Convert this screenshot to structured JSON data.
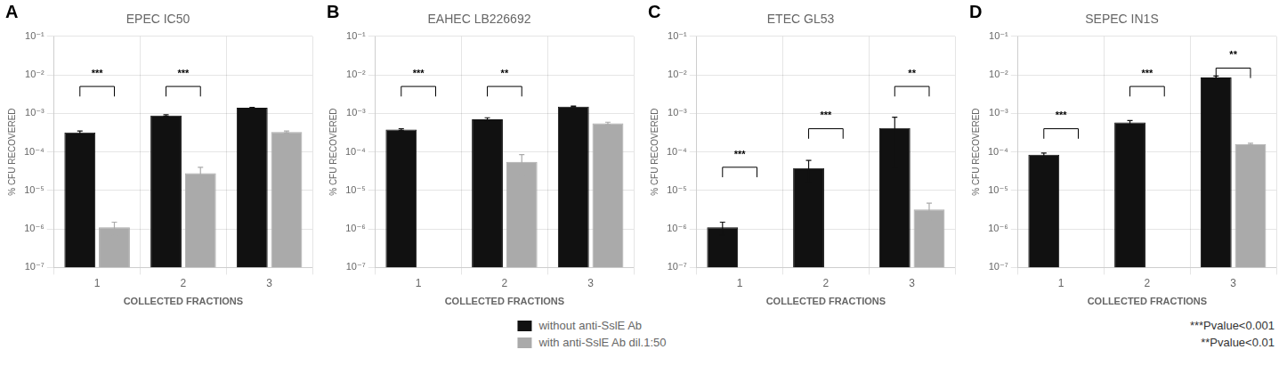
{
  "chart_data": [
    {
      "type": "bar",
      "label": "A",
      "title": "EPEC IC50",
      "categories": [
        "1",
        "2",
        "3"
      ],
      "series": [
        {
          "name": "without anti-SslE Ab",
          "color": "#111111",
          "values": [
            0.00032,
            0.00088,
            0.0014
          ],
          "errors": [
            3e-05,
            4e-05,
            3e-05
          ]
        },
        {
          "name": "with anti-SslE Ab dil.1:50",
          "color": "#aaaaaa",
          "values": [
            1.1e-06,
            2.8e-05,
            0.00033
          ],
          "errors": [
            4e-07,
            1.2e-05,
            2e-05
          ]
        }
      ],
      "brackets": [
        {
          "category": "1",
          "y": 0.005,
          "label": "***"
        },
        {
          "category": "2",
          "y": 0.005,
          "label": "***"
        }
      ],
      "xlabel": "COLLECTED FRACTIONS",
      "ylabel": "% CFU RECOVERED",
      "log": "y",
      "ylim": [
        1e-07,
        0.1
      ],
      "yticks": [
        {
          "value": 1e-07,
          "label": "10⁻⁷"
        },
        {
          "value": 1e-06,
          "label": "10⁻⁶"
        },
        {
          "value": 1e-05,
          "label": "10⁻⁵"
        },
        {
          "value": 0.0001,
          "label": "10⁻⁴"
        },
        {
          "value": 0.001,
          "label": "10⁻³"
        },
        {
          "value": 0.01,
          "label": "10⁻²"
        },
        {
          "value": 0.1,
          "label": "10⁻¹"
        }
      ],
      "grid": true
    },
    {
      "type": "bar",
      "label": "B",
      "title": "EAHEC LB226692",
      "categories": [
        "1",
        "2",
        "3"
      ],
      "series": [
        {
          "name": "without anti-SslE Ab",
          "color": "#111111",
          "values": [
            0.00038,
            0.0007,
            0.0015
          ],
          "errors": [
            2e-05,
            7e-05,
            4e-05
          ]
        },
        {
          "name": "with anti-SslE Ab dil.1:50",
          "color": "#aaaaaa",
          "values": [
            null,
            5.5e-05,
            0.00055
          ],
          "errors": [
            null,
            3e-05,
            4e-05
          ]
        }
      ],
      "brackets": [
        {
          "category": "1",
          "y": 0.005,
          "label": "***"
        },
        {
          "category": "2",
          "y": 0.005,
          "label": "**"
        }
      ],
      "xlabel": "COLLECTED FRACTIONS",
      "ylabel": "% CFU RECOVERED",
      "log": "y",
      "ylim": [
        1e-07,
        0.1
      ],
      "yticks": [
        {
          "value": 1e-07,
          "label": "10⁻⁷"
        },
        {
          "value": 1e-06,
          "label": "10⁻⁶"
        },
        {
          "value": 1e-05,
          "label": "10⁻⁵"
        },
        {
          "value": 0.0001,
          "label": "10⁻⁴"
        },
        {
          "value": 0.001,
          "label": "10⁻³"
        },
        {
          "value": 0.01,
          "label": "10⁻²"
        },
        {
          "value": 0.1,
          "label": "10⁻¹"
        }
      ],
      "grid": true,
      "legend": "bottom"
    },
    {
      "type": "bar",
      "label": "C",
      "title": "ETEC GL53",
      "categories": [
        "1",
        "2",
        "3"
      ],
      "series": [
        {
          "name": "without anti-SslE Ab",
          "color": "#111111",
          "values": [
            1.1e-06,
            3.8e-05,
            0.00042
          ],
          "errors": [
            4e-07,
            2.2e-05,
            0.00038
          ]
        },
        {
          "name": "with anti-SslE Ab dil.1:50",
          "color": "#aaaaaa",
          "values": [
            null,
            null,
            3.2e-06
          ],
          "errors": [
            null,
            null,
            1.5e-06
          ]
        }
      ],
      "brackets": [
        {
          "category": "1",
          "y": 4e-05,
          "label": "***"
        },
        {
          "category": "2",
          "y": 0.0004,
          "label": "***"
        },
        {
          "category": "3",
          "y": 0.005,
          "label": "**"
        }
      ],
      "xlabel": "COLLECTED FRACTIONS",
      "ylabel": "% CFU RECOVERED",
      "log": "y",
      "ylim": [
        1e-07,
        0.1
      ],
      "yticks": [
        {
          "value": 1e-07,
          "label": "10⁻⁷"
        },
        {
          "value": 1e-06,
          "label": "10⁻⁶"
        },
        {
          "value": 1e-05,
          "label": "10⁻⁵"
        },
        {
          "value": 0.0001,
          "label": "10⁻⁴"
        },
        {
          "value": 0.001,
          "label": "10⁻³"
        },
        {
          "value": 0.01,
          "label": "10⁻²"
        },
        {
          "value": 0.1,
          "label": "10⁻¹"
        }
      ],
      "grid": true
    },
    {
      "type": "bar",
      "label": "D",
      "title": "SEPEC IN1S",
      "categories": [
        "1",
        "2",
        "3"
      ],
      "series": [
        {
          "name": "without anti-SslE Ab",
          "color": "#111111",
          "values": [
            8.5e-05,
            0.00058,
            0.0085
          ],
          "errors": [
            8e-06,
            7e-05,
            0.0008
          ]
        },
        {
          "name": "with anti-SslE Ab dil.1:50",
          "color": "#aaaaaa",
          "values": [
            null,
            null,
            0.00016
          ],
          "errors": [
            null,
            null,
            8e-06
          ]
        }
      ],
      "brackets": [
        {
          "category": "1",
          "y": 0.0004,
          "label": "***"
        },
        {
          "category": "2",
          "y": 0.005,
          "label": "***"
        },
        {
          "category": "3",
          "y": 0.015,
          "label": "**"
        }
      ],
      "xlabel": "COLLECTED FRACTIONS",
      "ylabel": "% CFU RECOVERED",
      "log": "y",
      "ylim": [
        1e-07,
        0.1
      ],
      "yticks": [
        {
          "value": 1e-07,
          "label": "10⁻⁷"
        },
        {
          "value": 1e-06,
          "label": "10⁻⁶"
        },
        {
          "value": 1e-05,
          "label": "10⁻⁵"
        },
        {
          "value": 0.0001,
          "label": "10⁻⁴"
        },
        {
          "value": 0.001,
          "label": "10⁻³"
        },
        {
          "value": 0.01,
          "label": "10⁻²"
        },
        {
          "value": 0.1,
          "label": "10⁻¹"
        }
      ],
      "grid": true,
      "annotations": [
        "***Pvalue<0.001",
        "**Pvalue<0.01"
      ]
    }
  ]
}
